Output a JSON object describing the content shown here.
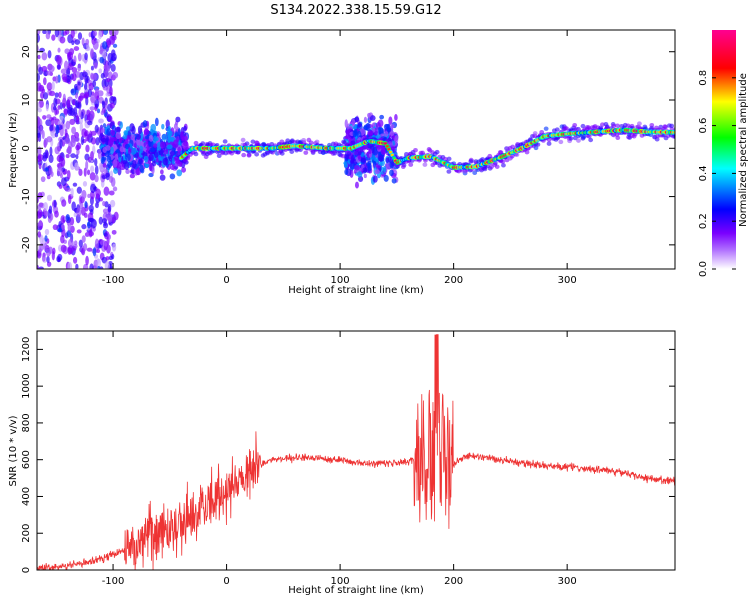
{
  "title": "S134.2022.338.15.59.G12",
  "chart_data": [
    {
      "type": "heatmap",
      "xlabel": "Height of straight line (km)",
      "ylabel": "Frequency (Hz)",
      "xlim": [
        -167,
        395
      ],
      "ylim": [
        -25,
        24.5
      ],
      "xticks": [
        -100,
        0,
        100,
        200,
        300
      ],
      "yticks": [
        -20,
        -10,
        0,
        10,
        20
      ],
      "colorbar": {
        "label": "Normalized spectral amplitude",
        "range": [
          0,
          1
        ],
        "ticks": [
          0.0,
          0.2,
          0.4,
          0.6,
          0.8
        ],
        "colormap": [
          "#ffffff",
          "#7a00ff",
          "#0000ff",
          "#00ffff",
          "#00ff00",
          "#ffff00",
          "#ff0000",
          "#ff0090"
        ]
      },
      "ridge": {
        "x": [
          -40,
          -30,
          0,
          40,
          60,
          90,
          110,
          125,
          140,
          150,
          160,
          180,
          200,
          220,
          240,
          260,
          280,
          300,
          320,
          350,
          370,
          395
        ],
        "y": [
          -2,
          0,
          0,
          0,
          0.5,
          0,
          0,
          1.5,
          1,
          -3,
          -2,
          -1.7,
          -4,
          -3.8,
          -2,
          0,
          2.5,
          3,
          3.3,
          3.8,
          3.4,
          3.3
        ]
      }
    },
    {
      "type": "line",
      "xlabel": "Height of straight line (km)",
      "ylabel": "SNR (10 * v/v)",
      "xlim": [
        -167,
        395
      ],
      "ylim": [
        0,
        1300
      ],
      "xticks": [
        -100,
        0,
        100,
        200,
        300
      ],
      "yticks": [
        0,
        200,
        400,
        600,
        800,
        1000,
        1200
      ],
      "color": "#ee3333",
      "envelope": {
        "x": [
          -167,
          -140,
          -110,
          -90,
          -70,
          -50,
          -30,
          -15,
          0,
          20,
          40,
          60,
          80,
          100,
          120,
          140,
          160,
          170,
          185,
          200,
          210,
          230,
          260,
          300,
          340,
          370,
          395
        ],
        "y": [
          12,
          20,
          60,
          110,
          170,
          230,
          300,
          380,
          440,
          540,
          600,
          610,
          610,
          600,
          580,
          580,
          590,
          600,
          620,
          580,
          620,
          610,
          580,
          560,
          540,
          500,
          480
        ]
      }
    }
  ]
}
